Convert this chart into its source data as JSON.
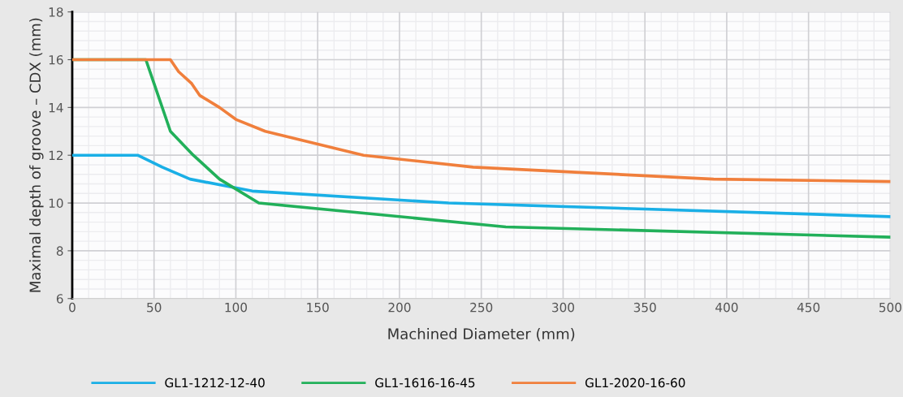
{
  "chart_data": {
    "type": "line",
    "xlabel": "Machined Diameter (mm)",
    "ylabel": "Maximal depth of groove – CDX (mm)",
    "series": [
      {
        "name": "GL1-1212-12-40",
        "color": "#1aafe6",
        "x": [
          0,
          40,
          55,
          72,
          110,
          230,
          500
        ],
        "values": [
          12,
          12,
          11.5,
          11,
          10.5,
          10,
          9.43
        ]
      },
      {
        "name": "GL1-1616-16-45",
        "color": "#22b05a",
        "x": [
          0,
          45,
          50,
          60,
          74,
          90,
          114,
          265,
          500
        ],
        "values": [
          16,
          16,
          15,
          13,
          12,
          11,
          10,
          9,
          8.57
        ]
      },
      {
        "name": "GL1-2020-16-60",
        "color": "#f07f3c",
        "x": [
          0,
          60,
          65,
          73,
          78,
          90,
          100,
          118,
          178,
          245,
          392,
          500
        ],
        "values": [
          16,
          16,
          15.5,
          15,
          14.5,
          14,
          13.5,
          13,
          12,
          11.5,
          11,
          10.9
        ]
      }
    ],
    "xlim": [
      0,
      500
    ],
    "xticks": [
      0,
      50,
      100,
      150,
      200,
      250,
      300,
      350,
      400,
      450,
      500
    ],
    "ylim": [
      6,
      18
    ],
    "yticks": [
      6,
      8,
      10,
      12,
      14,
      16,
      18
    ],
    "grid": true,
    "legend": "bottom",
    "marker": "none",
    "line_style": "solid"
  }
}
